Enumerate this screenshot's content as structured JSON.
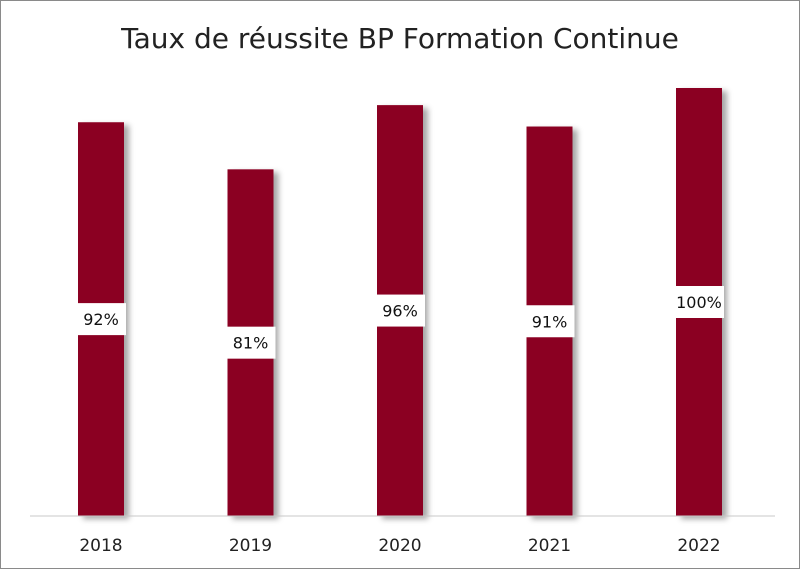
{
  "chart_data": {
    "type": "bar",
    "title": "Taux de réussite BP Formation Continue",
    "categories": [
      "2018",
      "2019",
      "2020",
      "2021",
      "2022"
    ],
    "values": [
      92,
      81,
      96,
      91,
      100
    ],
    "data_labels": [
      "92%",
      "81%",
      "96%",
      "91%",
      "100%"
    ],
    "xlabel": "",
    "ylabel": "",
    "ylim": [
      0,
      100
    ],
    "grid": false,
    "legend": "none",
    "bar_color": "#8b0024"
  }
}
